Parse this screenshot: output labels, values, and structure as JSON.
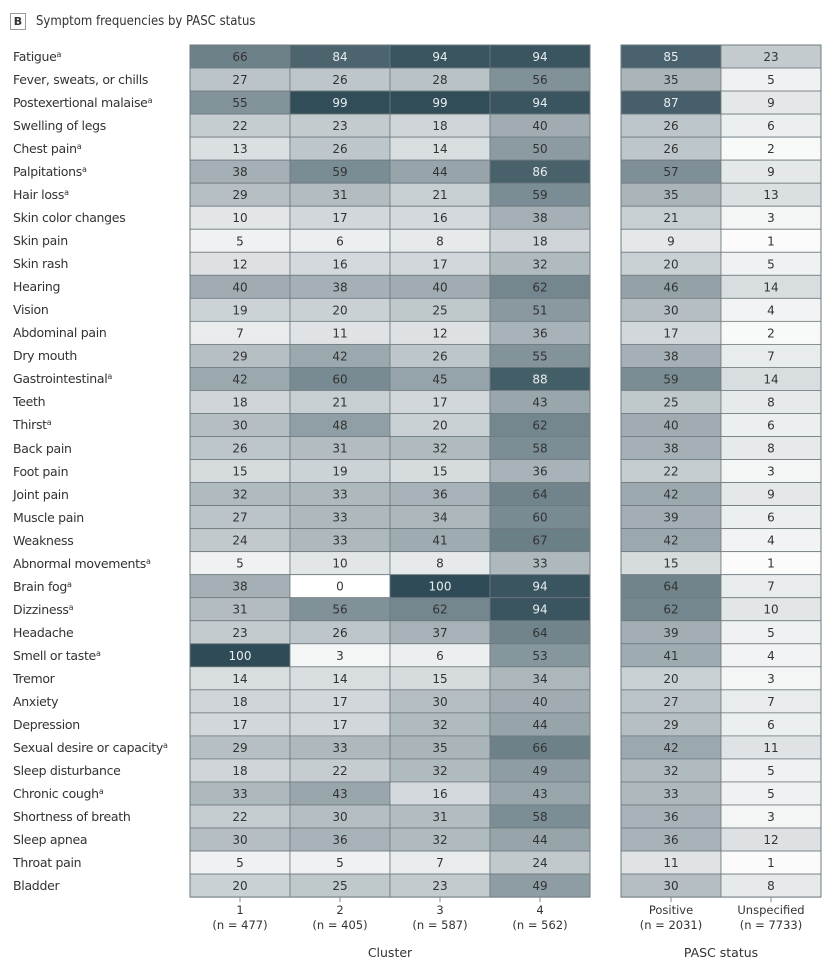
{
  "panel": {
    "badge": "B",
    "title": "Symptom frequencies by PASC status"
  },
  "chart_data": {
    "type": "heatmap",
    "title": "Symptom frequencies by PASC status",
    "footnote_marker": "a",
    "rows": [
      {
        "label": "Fatigue",
        "sup": true
      },
      {
        "label": "Fever, sweats, or chills",
        "sup": false
      },
      {
        "label": "Postexertional malaise",
        "sup": true
      },
      {
        "label": "Swelling of legs",
        "sup": false
      },
      {
        "label": "Chest pain",
        "sup": true
      },
      {
        "label": "Palpitations",
        "sup": true
      },
      {
        "label": "Hair loss",
        "sup": true
      },
      {
        "label": "Skin color changes",
        "sup": false
      },
      {
        "label": "Skin pain",
        "sup": false
      },
      {
        "label": "Skin rash",
        "sup": false
      },
      {
        "label": "Hearing",
        "sup": false
      },
      {
        "label": "Vision",
        "sup": false
      },
      {
        "label": "Abdominal pain",
        "sup": false
      },
      {
        "label": "Dry mouth",
        "sup": false
      },
      {
        "label": "Gastrointestinal",
        "sup": true
      },
      {
        "label": "Teeth",
        "sup": false
      },
      {
        "label": "Thirst",
        "sup": true
      },
      {
        "label": "Back pain",
        "sup": false
      },
      {
        "label": "Foot pain",
        "sup": false
      },
      {
        "label": "Joint pain",
        "sup": false
      },
      {
        "label": "Muscle pain",
        "sup": false
      },
      {
        "label": "Weakness",
        "sup": false
      },
      {
        "label": "Abnormal movements",
        "sup": true
      },
      {
        "label": "Brain fog",
        "sup": true
      },
      {
        "label": "Dizziness",
        "sup": true
      },
      {
        "label": "Headache",
        "sup": false
      },
      {
        "label": "Smell or taste",
        "sup": true
      },
      {
        "label": "Tremor",
        "sup": false
      },
      {
        "label": "Anxiety",
        "sup": false
      },
      {
        "label": "Depression",
        "sup": false
      },
      {
        "label": "Sexual desire or capacity",
        "sup": true
      },
      {
        "label": "Sleep disturbance",
        "sup": false
      },
      {
        "label": "Chronic cough",
        "sup": true
      },
      {
        "label": "Shortness of breath",
        "sup": false
      },
      {
        "label": "Sleep apnea",
        "sup": false
      },
      {
        "label": "Throat pain",
        "sup": false
      },
      {
        "label": "Bladder",
        "sup": false
      }
    ],
    "groups": [
      {
        "name": "Cluster",
        "columns": [
          {
            "label": "1",
            "n": "(n = 477)"
          },
          {
            "label": "2",
            "n": "(n = 405)"
          },
          {
            "label": "3",
            "n": "(n = 587)"
          },
          {
            "label": "4",
            "n": "(n = 562)"
          }
        ],
        "values": [
          [
            66,
            84,
            94,
            94
          ],
          [
            27,
            26,
            28,
            56
          ],
          [
            55,
            99,
            99,
            94
          ],
          [
            22,
            23,
            18,
            40
          ],
          [
            13,
            26,
            14,
            50
          ],
          [
            38,
            59,
            44,
            86
          ],
          [
            29,
            31,
            21,
            59
          ],
          [
            10,
            17,
            16,
            38
          ],
          [
            5,
            6,
            8,
            18
          ],
          [
            12,
            16,
            17,
            32
          ],
          [
            40,
            38,
            40,
            62
          ],
          [
            19,
            20,
            25,
            51
          ],
          [
            7,
            11,
            12,
            36
          ],
          [
            29,
            42,
            26,
            55
          ],
          [
            42,
            60,
            45,
            88
          ],
          [
            18,
            21,
            17,
            43
          ],
          [
            30,
            48,
            20,
            62
          ],
          [
            26,
            31,
            32,
            58
          ],
          [
            15,
            19,
            15,
            36
          ],
          [
            32,
            33,
            36,
            64
          ],
          [
            27,
            33,
            34,
            60
          ],
          [
            24,
            33,
            41,
            67
          ],
          [
            5,
            10,
            8,
            33
          ],
          [
            38,
            0,
            100,
            94
          ],
          [
            31,
            56,
            62,
            94
          ],
          [
            23,
            26,
            37,
            64
          ],
          [
            100,
            3,
            6,
            53
          ],
          [
            14,
            14,
            15,
            34
          ],
          [
            18,
            17,
            30,
            40
          ],
          [
            17,
            17,
            32,
            44
          ],
          [
            29,
            33,
            35,
            66
          ],
          [
            18,
            22,
            32,
            49
          ],
          [
            33,
            43,
            16,
            43
          ],
          [
            22,
            30,
            31,
            58
          ],
          [
            30,
            36,
            32,
            44
          ],
          [
            5,
            5,
            7,
            24
          ],
          [
            20,
            25,
            23,
            49
          ]
        ]
      },
      {
        "name": "PASC status",
        "columns": [
          {
            "label": "Positive",
            "n": "(n = 2031)"
          },
          {
            "label": "Unspecified",
            "n": "(n = 7733)"
          }
        ],
        "values": [
          [
            85,
            23
          ],
          [
            35,
            5
          ],
          [
            87,
            9
          ],
          [
            26,
            6
          ],
          [
            26,
            2
          ],
          [
            57,
            9
          ],
          [
            35,
            13
          ],
          [
            21,
            3
          ],
          [
            9,
            1
          ],
          [
            20,
            5
          ],
          [
            46,
            14
          ],
          [
            30,
            4
          ],
          [
            17,
            2
          ],
          [
            38,
            7
          ],
          [
            59,
            14
          ],
          [
            25,
            8
          ],
          [
            40,
            6
          ],
          [
            38,
            8
          ],
          [
            22,
            3
          ],
          [
            42,
            9
          ],
          [
            39,
            6
          ],
          [
            42,
            4
          ],
          [
            15,
            1
          ],
          [
            64,
            7
          ],
          [
            62,
            10
          ],
          [
            39,
            5
          ],
          [
            41,
            4
          ],
          [
            20,
            3
          ],
          [
            27,
            7
          ],
          [
            29,
            6
          ],
          [
            42,
            11
          ],
          [
            32,
            5
          ],
          [
            33,
            5
          ],
          [
            36,
            3
          ],
          [
            36,
            12
          ],
          [
            11,
            1
          ],
          [
            30,
            8
          ]
        ]
      }
    ],
    "value_range": [
      0,
      100
    ],
    "colors": {
      "low": "#ffffff",
      "high": "#2f4b57",
      "text_dark": "#333333",
      "text_light": "#e8eef0"
    }
  }
}
